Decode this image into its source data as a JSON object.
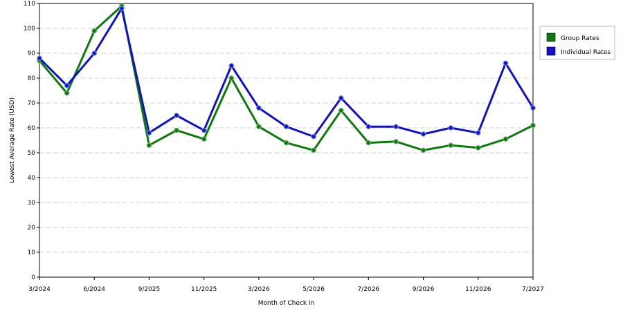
{
  "chart_data": {
    "type": "line",
    "title": "",
    "xlabel": "Month of Check In",
    "ylabel": "Lowest Average Rate (USD)",
    "ylim": [
      0,
      110
    ],
    "yticks": [
      0,
      10,
      20,
      30,
      40,
      50,
      60,
      70,
      80,
      90,
      100,
      110
    ],
    "x_tick_labels": [
      "3/2024",
      "6/2024",
      "9/2025",
      "11/2025",
      "3/2026",
      "5/2026",
      "7/2026",
      "9/2026",
      "11/2026",
      "7/2027"
    ],
    "x_tick_indices": [
      0,
      2,
      4,
      6,
      8,
      10,
      12,
      14,
      16,
      18
    ],
    "point_count": 19,
    "grid": true,
    "legend_position": "right",
    "series": [
      {
        "name": "Group Rates",
        "color": "#0a7a0a",
        "values": [
          87,
          74,
          99,
          109,
          53,
          59,
          55.5,
          80,
          60.5,
          54,
          51,
          67,
          54,
          54.5,
          51,
          53,
          52,
          55.5,
          61
        ]
      },
      {
        "name": "Individual Rates",
        "color": "#1010c8",
        "values": [
          88,
          77,
          90,
          108,
          58,
          65,
          59,
          85,
          68,
          60.5,
          56.5,
          72,
          60.5,
          60.5,
          57.5,
          60,
          58,
          86,
          68
        ]
      }
    ]
  }
}
